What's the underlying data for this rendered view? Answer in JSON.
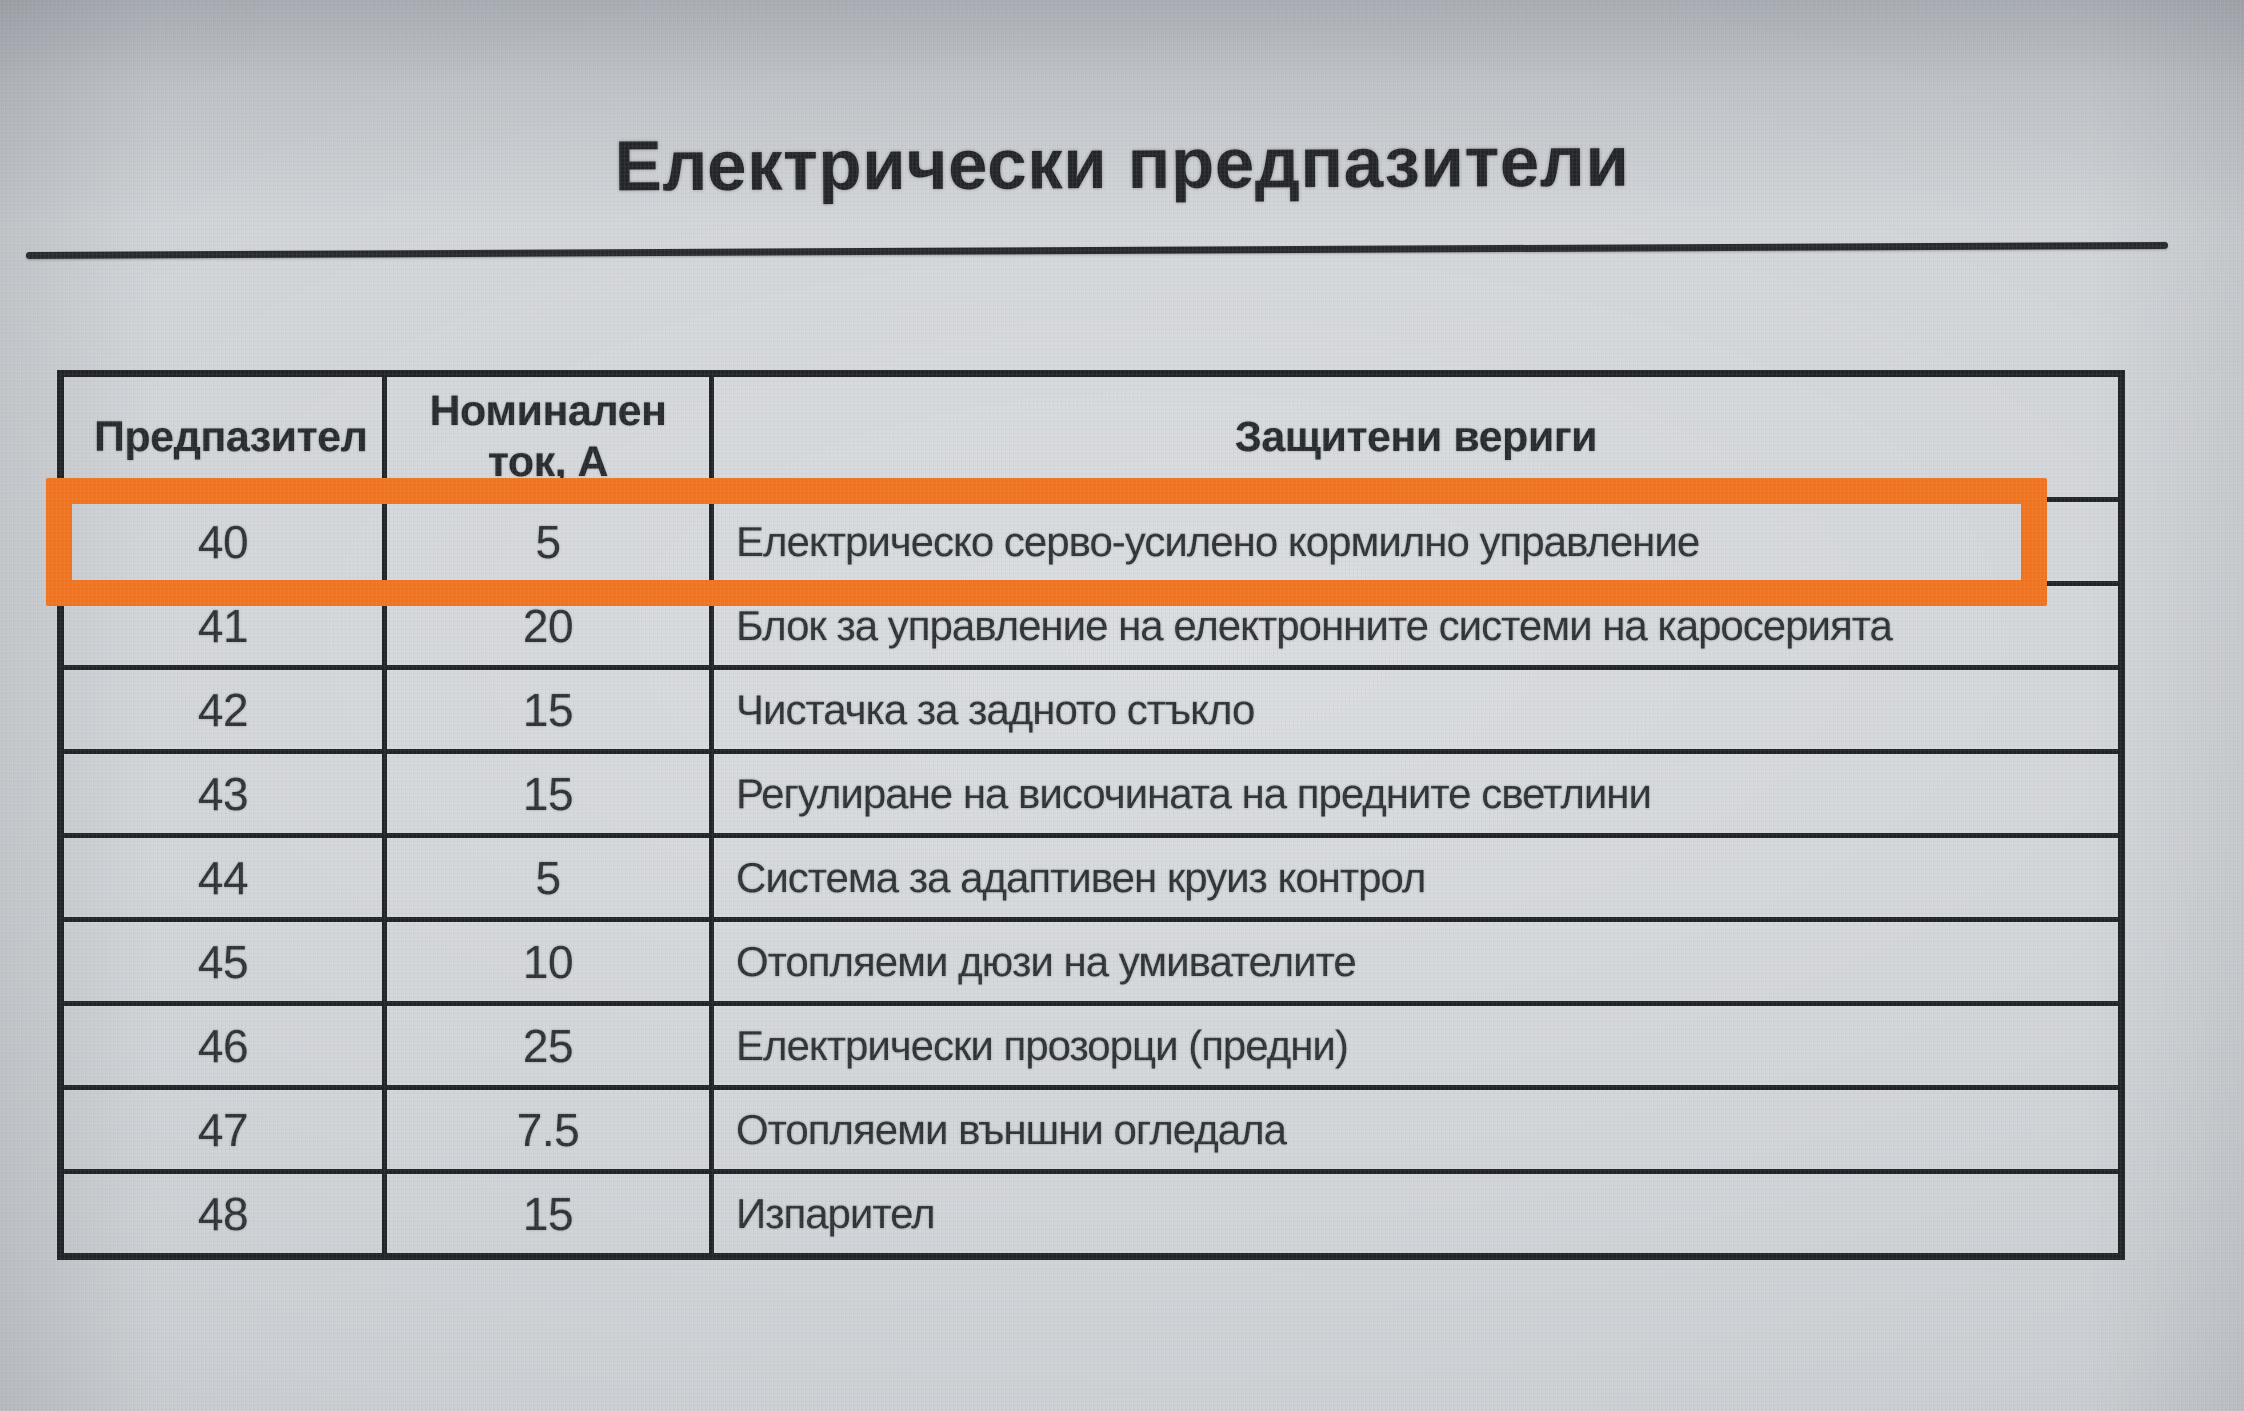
{
  "title": "Електрически предпазители",
  "table": {
    "headers": [
      {
        "id": "fuse",
        "label": "Предпазител"
      },
      {
        "id": "amps",
        "label": "Номинален ток, А"
      },
      {
        "id": "circuits",
        "label": "Защитени вериги"
      }
    ],
    "rows": [
      {
        "fuse": "40",
        "amps": "5",
        "circuit": "Електрическо серво-усилено кормилно управление",
        "highlighted": true
      },
      {
        "fuse": "41",
        "amps": "20",
        "circuit": "Блок за управление на електронните системи на каросерията",
        "highlighted": false
      },
      {
        "fuse": "42",
        "amps": "15",
        "circuit": "Чистачка за задното стъкло",
        "highlighted": false
      },
      {
        "fuse": "43",
        "amps": "15",
        "circuit": "Регулиране на височината на предните светлини",
        "highlighted": false
      },
      {
        "fuse": "44",
        "amps": "5",
        "circuit": "Система за адаптивен круиз контрол",
        "highlighted": false
      },
      {
        "fuse": "45",
        "amps": "10",
        "circuit": "Отопляеми дюзи на умивателите",
        "highlighted": false
      },
      {
        "fuse": "46",
        "amps": "25",
        "circuit": "Електрически прозорци (предни)",
        "highlighted": false
      },
      {
        "fuse": "47",
        "amps": "7.5",
        "circuit": "Отопляеми външни огледала",
        "highlighted": false
      },
      {
        "fuse": "48",
        "amps": "15",
        "circuit": "Изпарител",
        "highlighted": false
      }
    ]
  },
  "highlight": {
    "color": "#F2741E",
    "highlighted_fuse": "40"
  }
}
